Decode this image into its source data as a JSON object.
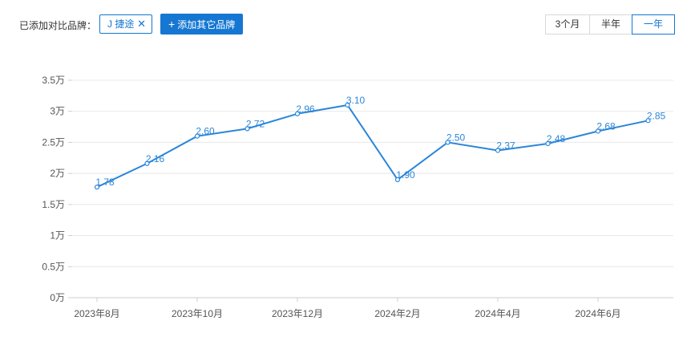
{
  "filter": {
    "added_label": "已添加对比品牌：",
    "brand_chip": {
      "label": "J 捷途",
      "close_glyph": "✕"
    },
    "add_button": {
      "plus": "+",
      "label": "添加其它品牌"
    }
  },
  "range_tabs": [
    {
      "label": "3个月",
      "active": false
    },
    {
      "label": "半年",
      "active": false
    },
    {
      "label": "一年",
      "active": true
    }
  ],
  "colors": {
    "accent": "#1677d2",
    "line": "#2b86d9",
    "grid": "#e8e8e8"
  },
  "chart_data": {
    "type": "line",
    "x": [
      "2023-08",
      "2023-09",
      "2023-10",
      "2023-11",
      "2023-12",
      "2024-01",
      "2024-02",
      "2024-03",
      "2024-04",
      "2024-05",
      "2024-06",
      "2024-07"
    ],
    "x_tick_labels": [
      "2023年8月",
      "2023年10月",
      "2023年12月",
      "2024年2月",
      "2024年4月",
      "2024年6月"
    ],
    "x_tick_positions": [
      0,
      2,
      4,
      6,
      8,
      10
    ],
    "series": [
      {
        "values": [
          1.78,
          2.16,
          2.6,
          2.72,
          2.96,
          3.1,
          1.9,
          2.5,
          2.37,
          2.48,
          2.68,
          2.85
        ],
        "data_labels": [
          "1.78",
          "2.16",
          "2.60",
          "2.72",
          "2.96",
          "3.10",
          "1.90",
          "2.50",
          "2.37",
          "2.48",
          "2.68",
          "2.85"
        ]
      }
    ],
    "y_ticks": [
      0,
      0.5,
      1,
      1.5,
      2,
      2.5,
      3,
      3.5
    ],
    "y_tick_labels": [
      "0万",
      "0.5万",
      "1万",
      "1.5万",
      "2万",
      "2.5万",
      "3万",
      "3.5万"
    ],
    "ylim": [
      0,
      3.5
    ],
    "grid": true,
    "legend": "none"
  }
}
